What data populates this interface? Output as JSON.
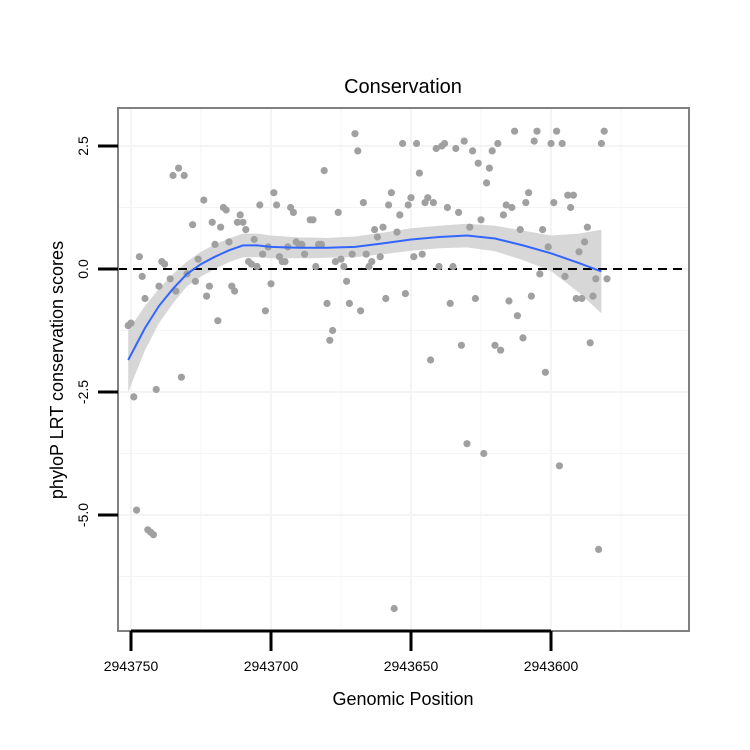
{
  "chart_data": {
    "type": "scatter",
    "title": "Conservation",
    "xlabel": "Genomic Position",
    "ylabel": "phyloP LRT conservation scores",
    "x_reversed": true,
    "xlim": [
      2943755,
      2943545
    ],
    "ylim": [
      -7.5,
      3.3
    ],
    "x_ticks": [
      2943750,
      2943700,
      2943650,
      2943600
    ],
    "x_tick_labels": [
      "2943750",
      "2943700",
      "2943650",
      "2943600"
    ],
    "y_ticks": [
      2.5,
      0.0,
      -2.5,
      -5.0
    ],
    "y_tick_labels": [
      "2.5",
      "0.0",
      "-2.5",
      "-5.0"
    ],
    "reference_line": {
      "y": 0,
      "style": "dashed"
    },
    "grid": true,
    "series": [
      {
        "name": "phyloP scores",
        "kind": "points",
        "points": [
          [
            2943751,
            -1.15
          ],
          [
            2943750,
            -1.1
          ],
          [
            2943749,
            -2.6
          ],
          [
            2943748,
            -4.9
          ],
          [
            2943747,
            0.25
          ],
          [
            2943746,
            -0.15
          ],
          [
            2943745,
            -0.6
          ],
          [
            2943744,
            -5.3
          ],
          [
            2943743,
            -5.35
          ],
          [
            2943742,
            -5.4
          ],
          [
            2943741,
            -2.45
          ],
          [
            2943740,
            -0.35
          ],
          [
            2943739,
            0.15
          ],
          [
            2943738,
            0.1
          ],
          [
            2943736,
            -0.2
          ],
          [
            2943735,
            1.9
          ],
          [
            2943734,
            -0.45
          ],
          [
            2943733,
            2.05
          ],
          [
            2943732,
            -2.2
          ],
          [
            2943731,
            1.9
          ],
          [
            2943730,
            -0.1
          ],
          [
            2943728,
            0.9
          ],
          [
            2943727,
            -0.25
          ],
          [
            2943726,
            0.2
          ],
          [
            2943724,
            1.4
          ],
          [
            2943723,
            -0.55
          ],
          [
            2943722,
            -0.35
          ],
          [
            2943721,
            0.95
          ],
          [
            2943720,
            0.5
          ],
          [
            2943719,
            -1.05
          ],
          [
            2943718,
            0.85
          ],
          [
            2943717,
            1.25
          ],
          [
            2943716,
            1.2
          ],
          [
            2943715,
            0.55
          ],
          [
            2943714,
            -0.35
          ],
          [
            2943713,
            -0.45
          ],
          [
            2943712,
            0.95
          ],
          [
            2943711,
            1.1
          ],
          [
            2943710,
            0.95
          ],
          [
            2943709,
            0.8
          ],
          [
            2943708,
            0.15
          ],
          [
            2943707,
            0.1
          ],
          [
            2943706,
            0.6
          ],
          [
            2943705,
            0.05
          ],
          [
            2943704,
            1.3
          ],
          [
            2943703,
            0.3
          ],
          [
            2943702,
            -0.85
          ],
          [
            2943701,
            0.45
          ],
          [
            2943700,
            -0.3
          ],
          [
            2943699,
            1.55
          ],
          [
            2943698,
            1.3
          ],
          [
            2943697,
            0.25
          ],
          [
            2943696,
            0.15
          ],
          [
            2943695,
            0.15
          ],
          [
            2943694,
            0.45
          ],
          [
            2943693,
            1.25
          ],
          [
            2943692,
            1.15
          ],
          [
            2943691,
            0.55
          ],
          [
            2943690,
            0.5
          ],
          [
            2943689,
            0.5
          ],
          [
            2943688,
            0.3
          ],
          [
            2943686,
            1.0
          ],
          [
            2943685,
            1.0
          ],
          [
            2943684,
            0.05
          ],
          [
            2943683,
            0.5
          ],
          [
            2943682,
            0.5
          ],
          [
            2943681,
            2.0
          ],
          [
            2943680,
            -0.7
          ],
          [
            2943679,
            -1.45
          ],
          [
            2943678,
            -1.25
          ],
          [
            2943677,
            0.15
          ],
          [
            2943676,
            1.15
          ],
          [
            2943675,
            0.2
          ],
          [
            2943674,
            0.05
          ],
          [
            2943673,
            -0.25
          ],
          [
            2943672,
            -0.7
          ],
          [
            2943671,
            0.3
          ],
          [
            2943670,
            2.75
          ],
          [
            2943669,
            2.4
          ],
          [
            2943668,
            -0.85
          ],
          [
            2943667,
            1.35
          ],
          [
            2943666,
            0.3
          ],
          [
            2943665,
            0.05
          ],
          [
            2943664,
            0.15
          ],
          [
            2943663,
            0.8
          ],
          [
            2943662,
            0.65
          ],
          [
            2943661,
            0.25
          ],
          [
            2943660,
            0.85
          ],
          [
            2943659,
            -0.6
          ],
          [
            2943658,
            1.3
          ],
          [
            2943657,
            1.55
          ],
          [
            2943656,
            -6.9
          ],
          [
            2943655,
            0.75
          ],
          [
            2943654,
            1.1
          ],
          [
            2943653,
            2.55
          ],
          [
            2943652,
            -0.5
          ],
          [
            2943651,
            1.3
          ],
          [
            2943650,
            1.45
          ],
          [
            2943649,
            0.25
          ],
          [
            2943648,
            2.55
          ],
          [
            2943647,
            1.95
          ],
          [
            2943646,
            0.3
          ],
          [
            2943645,
            1.35
          ],
          [
            2943644,
            1.45
          ],
          [
            2943643,
            -1.85
          ],
          [
            2943642,
            1.35
          ],
          [
            2943641,
            2.45
          ],
          [
            2943640,
            0.05
          ],
          [
            2943639,
            2.5
          ],
          [
            2943638,
            2.55
          ],
          [
            2943637,
            1.25
          ],
          [
            2943636,
            -0.7
          ],
          [
            2943635,
            0.05
          ],
          [
            2943634,
            2.45
          ],
          [
            2943633,
            1.15
          ],
          [
            2943632,
            -1.55
          ],
          [
            2943631,
            2.6
          ],
          [
            2943630,
            -3.55
          ],
          [
            2943629,
            0.85
          ],
          [
            2943628,
            2.4
          ],
          [
            2943627,
            -0.6
          ],
          [
            2943626,
            2.15
          ],
          [
            2943625,
            1.0
          ],
          [
            2943624,
            -3.75
          ],
          [
            2943623,
            1.75
          ],
          [
            2943622,
            2.05
          ],
          [
            2943621,
            2.4
          ],
          [
            2943620,
            -1.55
          ],
          [
            2943619,
            2.55
          ],
          [
            2943618,
            -1.65
          ],
          [
            2943617,
            1.1
          ],
          [
            2943616,
            1.3
          ],
          [
            2943615,
            -0.65
          ],
          [
            2943614,
            1.25
          ],
          [
            2943613,
            2.8
          ],
          [
            2943612,
            -0.95
          ],
          [
            2943611,
            0.8
          ],
          [
            2943610,
            -1.4
          ],
          [
            2943609,
            1.35
          ],
          [
            2943608,
            1.55
          ],
          [
            2943607,
            -0.55
          ],
          [
            2943606,
            2.6
          ],
          [
            2943605,
            2.8
          ],
          [
            2943604,
            -0.1
          ],
          [
            2943603,
            0.8
          ],
          [
            2943602,
            -2.1
          ],
          [
            2943601,
            0.45
          ],
          [
            2943600,
            2.55
          ],
          [
            2943599,
            1.35
          ],
          [
            2943598,
            2.8
          ],
          [
            2943597,
            -4.0
          ],
          [
            2943596,
            2.55
          ],
          [
            2943595,
            -0.15
          ],
          [
            2943594,
            1.5
          ],
          [
            2943593,
            1.25
          ],
          [
            2943592,
            1.5
          ],
          [
            2943591,
            -0.6
          ],
          [
            2943590,
            0.35
          ],
          [
            2943589,
            -0.6
          ],
          [
            2943588,
            0.55
          ],
          [
            2943587,
            0.85
          ],
          [
            2943586,
            -1.5
          ],
          [
            2943585,
            -0.55
          ],
          [
            2943584,
            -0.2
          ],
          [
            2943583,
            -5.7
          ],
          [
            2943582,
            2.55
          ],
          [
            2943581,
            2.8
          ],
          [
            2943580,
            -0.2
          ]
        ]
      },
      {
        "name": "smoothed fit",
        "kind": "line",
        "color": "#3366ff",
        "x": [
          2943751,
          2943745,
          2943740,
          2943735,
          2943730,
          2943725,
          2943720,
          2943715,
          2943710,
          2943705,
          2943700,
          2943695,
          2943690,
          2943685,
          2943680,
          2943670,
          2943660,
          2943650,
          2943640,
          2943630,
          2943620,
          2943610,
          2943600,
          2943590,
          2943582
        ],
        "y": [
          -1.85,
          -1.2,
          -0.75,
          -0.4,
          -0.1,
          0.1,
          0.25,
          0.38,
          0.48,
          0.48,
          0.45,
          0.44,
          0.43,
          0.43,
          0.43,
          0.45,
          0.52,
          0.6,
          0.65,
          0.68,
          0.62,
          0.48,
          0.32,
          0.12,
          -0.05
        ],
        "ci_upper": [
          -1.25,
          -0.75,
          -0.4,
          -0.1,
          0.15,
          0.35,
          0.5,
          0.62,
          0.72,
          0.72,
          0.68,
          0.66,
          0.64,
          0.64,
          0.63,
          0.66,
          0.74,
          0.83,
          0.88,
          0.92,
          0.88,
          0.78,
          0.68,
          0.72,
          0.8
        ],
        "ci_lower": [
          -2.5,
          -1.65,
          -1.1,
          -0.7,
          -0.35,
          -0.15,
          0.0,
          0.14,
          0.24,
          0.24,
          0.22,
          0.22,
          0.22,
          0.22,
          0.23,
          0.24,
          0.3,
          0.37,
          0.42,
          0.44,
          0.36,
          0.18,
          -0.04,
          -0.48,
          -0.9
        ]
      }
    ]
  },
  "colors": {
    "points": "#a0a0a0",
    "fit_line": "#3366ff",
    "ribbon": "#d3d3d3",
    "panel_border": "#808080",
    "grid": "#f4f4f4",
    "reference_line": "#000000"
  }
}
